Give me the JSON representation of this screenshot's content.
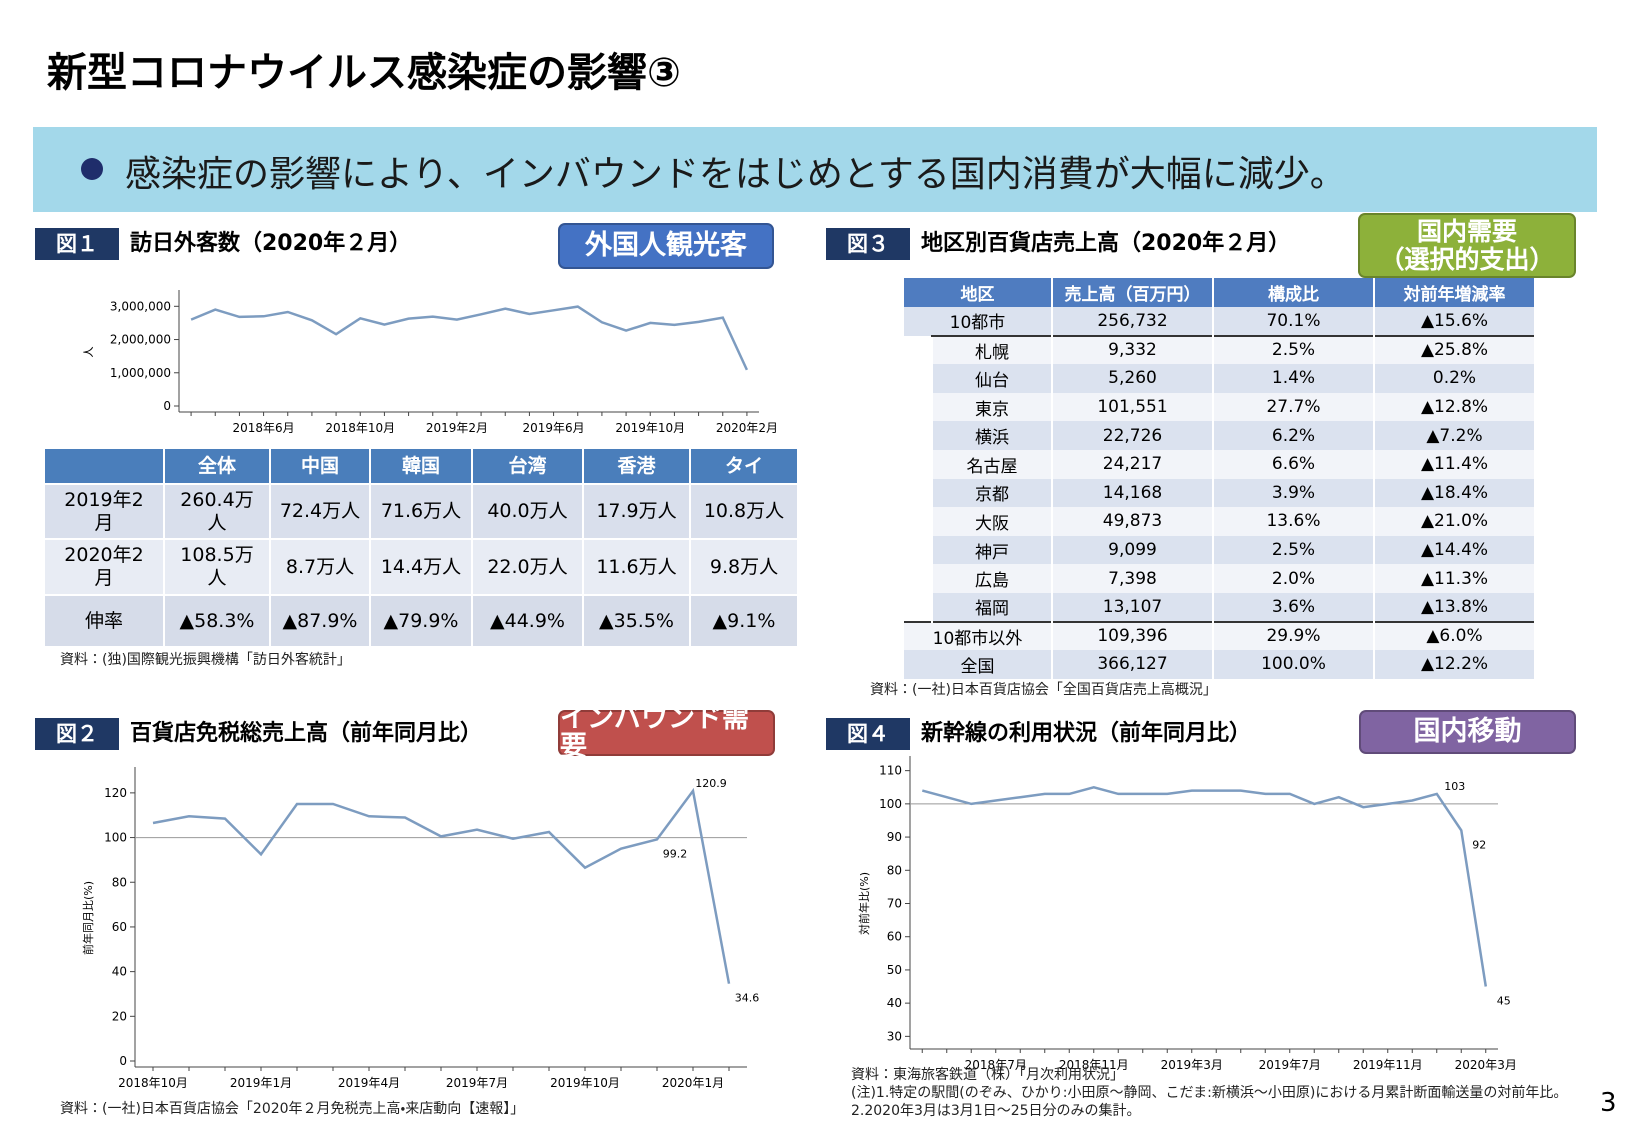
{
  "title": "新型コロナウイルス感染症の影響③",
  "banner": "感染症の影響により、インバウンドをはじめとする国内消費が大幅に減少。",
  "page_number": "3",
  "figures": [
    {
      "label": "図１",
      "title": "訪日外客数（2020年２月）",
      "tag": [
        "外国人観光客"
      ],
      "tag_color": "#4472c4",
      "notes": [
        "資料：(独)国際観光振興機構「訪日外客統計」"
      ]
    },
    {
      "label": "図２",
      "title": "百貨店免税総売上高（前年同月比）",
      "tag": [
        "インバウンド需要"
      ],
      "tag_color": "#c0504d",
      "notes": [
        "資料：(一社)日本百貨店協会「2020年２月免税売上高・来店動向【速報】」"
      ]
    },
    {
      "label": "図３",
      "title": "地区別百貨店売上高（2020年２月）",
      "tag": [
        "国内需要",
        "（選択的支出）"
      ],
      "tag_color": "#8db13a",
      "notes": [
        "資料：(一社)日本百貨店協会「全国百貨店売上高概況」"
      ]
    },
    {
      "label": "図４",
      "title": "新幹線の利用状況（前年同月比）",
      "tag": [
        "国内移動"
      ],
      "tag_color": "#8064a2",
      "notes": [
        "資料：東海旅客鉄道（株）「月次利用状況」",
        "(注)1.特定の駅間(のぞみ、ひかり:小田原～静岡、こだま:新横浜～小田原)における月累計断面輸送量の対前年比。",
        "2.2020年3月は3月1日～25日分のみの集計。"
      ]
    }
  ],
  "table1": {
    "columns": [
      "全体",
      "中国",
      "韓国",
      "台湾",
      "香港",
      "タイ"
    ],
    "rows": [
      {
        "label": "2019年2月",
        "cells": [
          "260.4万人",
          "72.4万人",
          "71.6万人",
          "40.0万人",
          "17.9万人",
          "10.8万人"
        ]
      },
      {
        "label": "2020年2月",
        "cells": [
          "108.5万人",
          "8.7万人",
          "14.4万人",
          "22.0万人",
          "11.6万人",
          "9.8万人"
        ]
      },
      {
        "label": "伸率",
        "cells": [
          "▲58.3%",
          "▲87.9%",
          "▲79.9%",
          "▲44.9%",
          "▲35.5%",
          "▲9.1%"
        ]
      }
    ]
  },
  "table3": {
    "columns": [
      "地区",
      "売上高（百万円）",
      "構成比",
      "対前年増減率"
    ],
    "rows": [
      {
        "cells": [
          "10都市",
          "256,732",
          "70.1%",
          "▲15.6%"
        ]
      },
      {
        "cells": [
          "札幌",
          "9,332",
          "2.5%",
          "▲25.8%"
        ],
        "indent": true
      },
      {
        "cells": [
          "仙台",
          "5,260",
          "1.4%",
          "0.2%"
        ],
        "indent": true
      },
      {
        "cells": [
          "東京",
          "101,551",
          "27.7%",
          "▲12.8%"
        ],
        "indent": true
      },
      {
        "cells": [
          "横浜",
          "22,726",
          "6.2%",
          "▲7.2%"
        ],
        "indent": true
      },
      {
        "cells": [
          "名古屋",
          "24,217",
          "6.6%",
          "▲11.4%"
        ],
        "indent": true
      },
      {
        "cells": [
          "京都",
          "14,168",
          "3.9%",
          "▲18.4%"
        ],
        "indent": true
      },
      {
        "cells": [
          "大阪",
          "49,873",
          "13.6%",
          "▲21.0%"
        ],
        "indent": true
      },
      {
        "cells": [
          "神戸",
          "9,099",
          "2.5%",
          "▲14.4%"
        ],
        "indent": true
      },
      {
        "cells": [
          "広島",
          "7,398",
          "2.0%",
          "▲11.3%"
        ],
        "indent": true
      },
      {
        "cells": [
          "福岡",
          "13,107",
          "3.6%",
          "▲13.8%"
        ],
        "indent": true
      },
      {
        "cells": [
          "10都市以外",
          "109,396",
          "29.9%",
          "▲6.0%"
        ]
      },
      {
        "cells": [
          "全国",
          "366,127",
          "100.0%",
          "▲12.2%"
        ]
      }
    ]
  },
  "chart_data": [
    {
      "type": "line",
      "ylabel": "人",
      "color": "#7d9cc0",
      "categories": [
        null,
        null,
        null,
        "2018年6月",
        null,
        null,
        null,
        "2018年10月",
        null,
        null,
        null,
        "2019年2月",
        null,
        null,
        null,
        "2019年6月",
        null,
        null,
        null,
        "2019年10月",
        null,
        null,
        null,
        "2020年2月"
      ],
      "values": [
        2600000,
        2900000,
        2680000,
        2700000,
        2830000,
        2580000,
        2160000,
        2640000,
        2450000,
        2630000,
        2690000,
        2600000,
        2760000,
        2930000,
        2770000,
        2880000,
        2990000,
        2520000,
        2270000,
        2500000,
        2440000,
        2530000,
        2660000,
        1085000
      ],
      "ylim": [
        0,
        3250000
      ],
      "yticks": [
        0,
        {
          "value": 1000000,
          "label": "1,000,000"
        },
        {
          "value": 2000000,
          "label": "2,000,000"
        },
        {
          "value": 3000000,
          "label": "3,000,000"
        }
      ]
    },
    {
      "type": "line",
      "ylabel": "前年同月比(%)",
      "color": "#7d9cc0",
      "categories": [
        "2018年10月",
        null,
        null,
        "2019年1月",
        null,
        null,
        "2019年4月",
        null,
        null,
        "2019年7月",
        null,
        null,
        "2019年10月",
        null,
        null,
        "2020年1月",
        null
      ],
      "values": [
        106.5,
        109.5,
        108.5,
        92.5,
        115,
        115,
        109.5,
        109,
        100.5,
        103.5,
        99.5,
        102.5,
        86.5,
        95,
        99.2,
        120.9,
        34.6
      ],
      "value_labels": [
        null,
        null,
        null,
        null,
        null,
        null,
        null,
        null,
        null,
        null,
        null,
        null,
        null,
        null,
        "99.2",
        "120.9",
        "34.6"
      ],
      "ylim": [
        0,
        128
      ],
      "yticks": [
        0,
        20,
        40,
        60,
        80,
        100,
        120
      ],
      "hline": 100
    },
    {
      "type": "line",
      "ylabel": "対前年比(%)",
      "color": "#7d9cc0",
      "categories": [
        null,
        null,
        null,
        "2018年7月",
        null,
        null,
        null,
        "2018年11月",
        null,
        null,
        null,
        "2019年3月",
        null,
        null,
        null,
        "2019年7月",
        null,
        null,
        null,
        "2019年11月",
        null,
        null,
        null,
        "2020年3月"
      ],
      "values": [
        104,
        102,
        100,
        101,
        102,
        103,
        103,
        105,
        103,
        103,
        103,
        104,
        104,
        104,
        103,
        103,
        100,
        102,
        99,
        100,
        101,
        103,
        92,
        45
      ],
      "value_labels": [
        null,
        null,
        null,
        null,
        null,
        null,
        null,
        null,
        null,
        null,
        null,
        null,
        null,
        null,
        null,
        null,
        null,
        null,
        null,
        null,
        null,
        "103",
        "92",
        "45"
      ],
      "ylim": [
        28,
        112
      ],
      "yticks": [
        30,
        40,
        50,
        60,
        70,
        80,
        90,
        100,
        110
      ],
      "hline": 100
    }
  ]
}
